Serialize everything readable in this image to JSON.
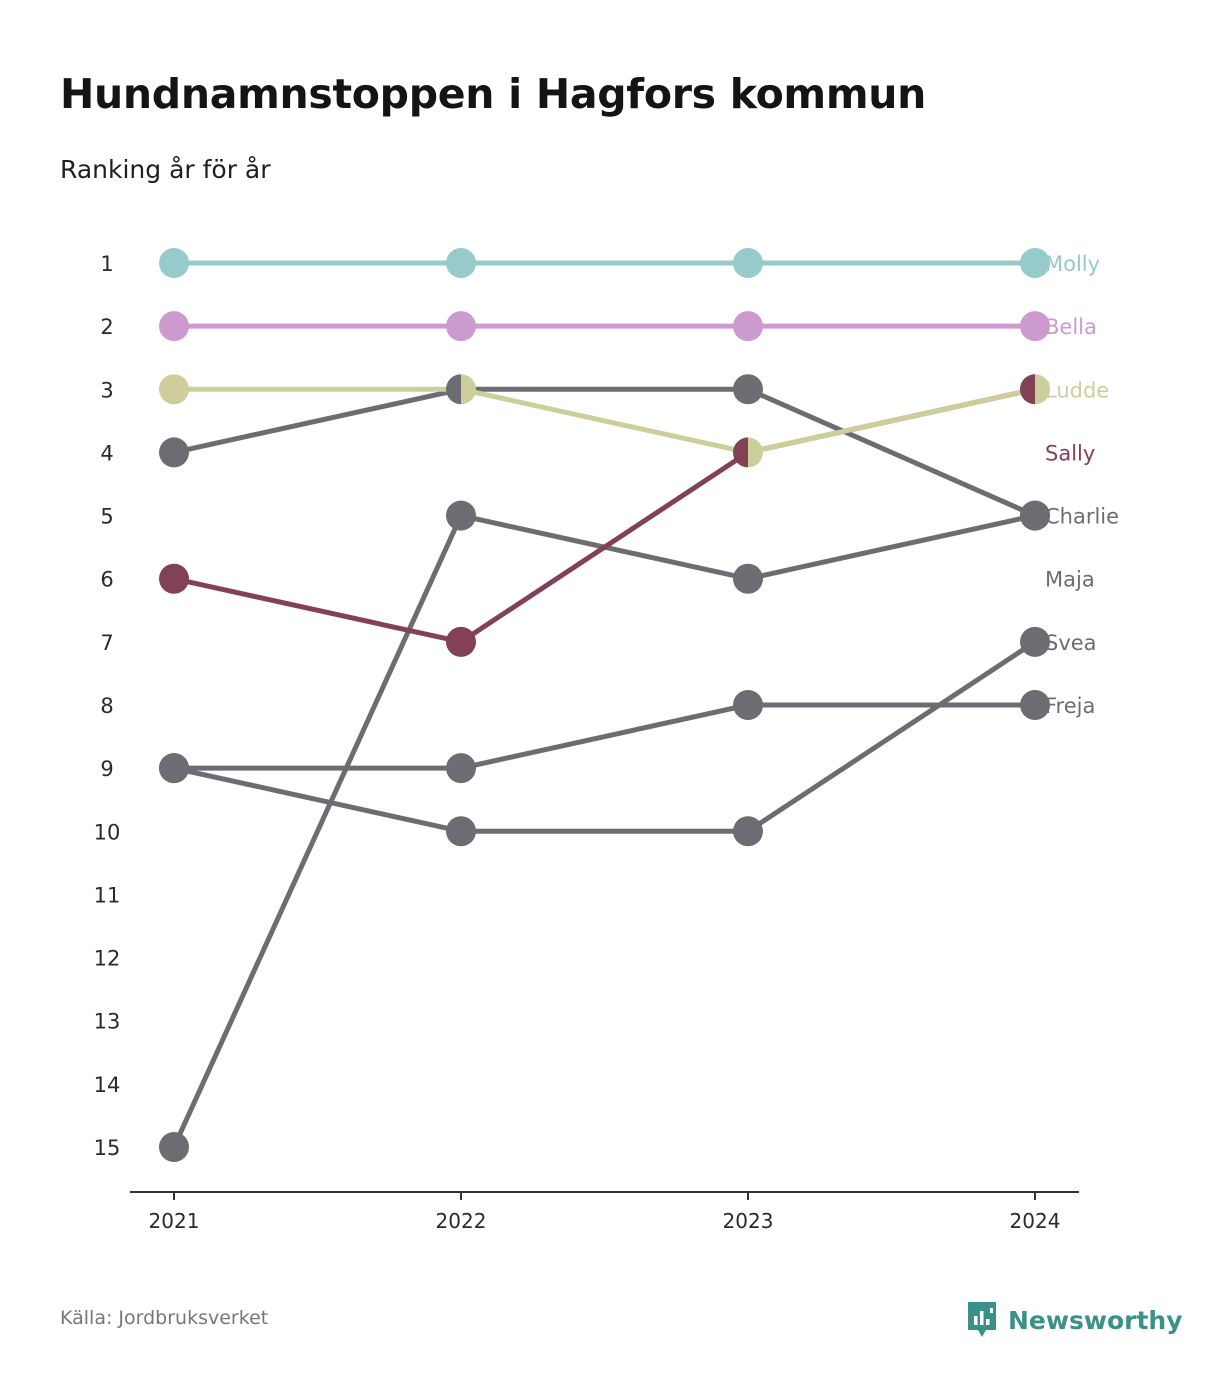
{
  "title": "Hundnamnstoppen i Hagfors kommun",
  "subtitle": "Ranking år för år",
  "source": "Källa: Jordbruksverket",
  "brand": "Newsworthy",
  "colors": {
    "grey": "#6d6c72",
    "axis": "#333333",
    "brand": "#3b9188"
  },
  "chart_data": {
    "type": "line",
    "x": [
      "2021",
      "2022",
      "2023",
      "2024"
    ],
    "y_ticks": [
      1,
      2,
      3,
      4,
      5,
      6,
      7,
      8,
      9,
      10,
      11,
      12,
      13,
      14,
      15
    ],
    "ylim": [
      15,
      1
    ],
    "y_inverted": true,
    "series": [
      {
        "name": "Freja",
        "values": [
          9,
          9,
          8,
          8
        ],
        "color": "#6d6c72"
      },
      {
        "name": "Svea",
        "values": [
          9,
          10,
          10,
          7
        ],
        "color": "#6d6c72"
      },
      {
        "name": "Maja",
        "values": [
          15,
          5,
          6,
          5
        ],
        "color": "#6d6c72"
      },
      {
        "name": "Charlie",
        "values": [
          4,
          3,
          3,
          5
        ],
        "color": "#6d6c72"
      },
      {
        "name": "Sally",
        "values": [
          6,
          7,
          4,
          3
        ],
        "color": "#834155"
      },
      {
        "name": "Ludde",
        "values": [
          3,
          3,
          4,
          3
        ],
        "color": "#cdce9b"
      },
      {
        "name": "Bella",
        "values": [
          2,
          2,
          2,
          2
        ],
        "color": "#cd9ad0"
      },
      {
        "name": "Molly",
        "values": [
          1,
          1,
          1,
          1
        ],
        "color": "#96cacb"
      }
    ],
    "end_labels": [
      {
        "name": "Molly",
        "rank": 1,
        "color": "#96cacb"
      },
      {
        "name": "Bella",
        "rank": 2,
        "color": "#cd9ad0"
      },
      {
        "name": "Ludde",
        "rank": 3,
        "color": "#cdce9b"
      },
      {
        "name": "Sally",
        "rank": 4,
        "color": "#834155"
      },
      {
        "name": "Charlie",
        "rank": 5,
        "color": "#6d6c72"
      },
      {
        "name": "Maja",
        "rank": 6,
        "color": "#6d6c72"
      },
      {
        "name": "Svea",
        "rank": 7,
        "color": "#6d6c72"
      },
      {
        "name": "Freja",
        "rank": 8,
        "color": "#6d6c72"
      }
    ]
  }
}
